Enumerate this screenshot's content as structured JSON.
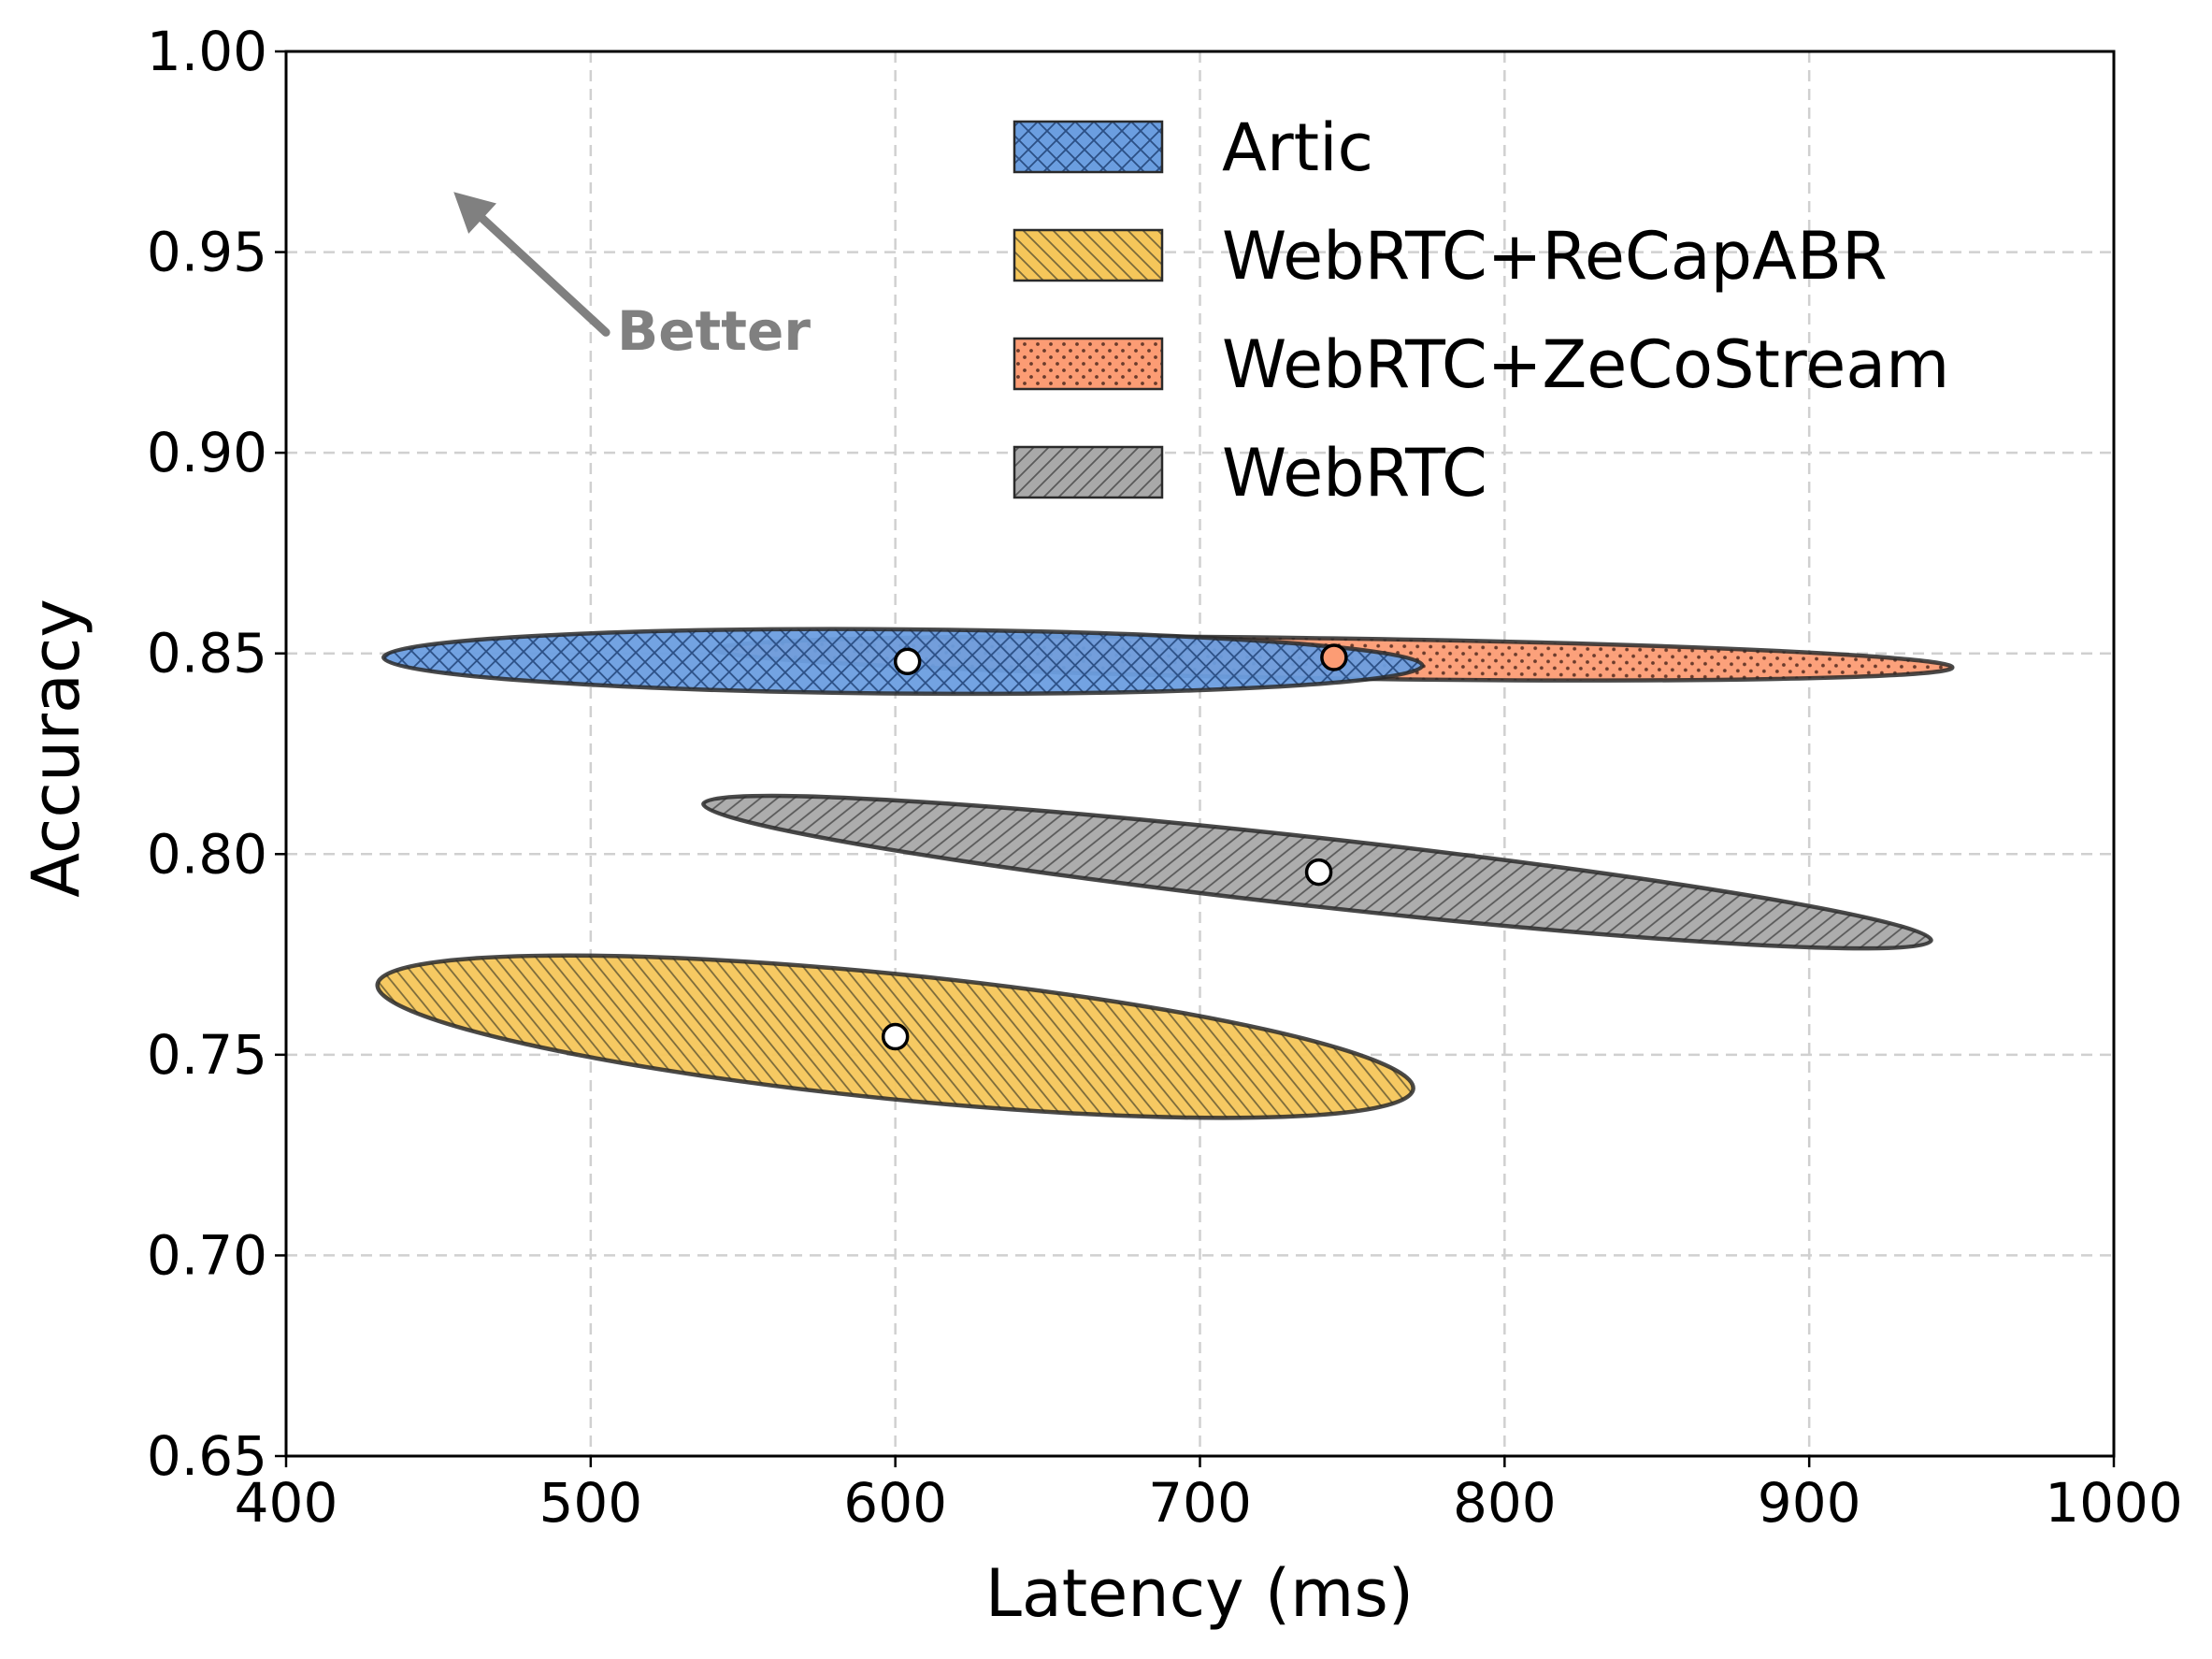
{
  "chart_data": {
    "type": "scatter",
    "subtype": "confidence-ellipses",
    "title": "",
    "xlabel": "Latency (ms)",
    "ylabel": "Accuracy",
    "xlim": [
      400,
      1000
    ],
    "ylim": [
      0.65,
      1.0
    ],
    "xticks": [
      400,
      500,
      600,
      700,
      800,
      900,
      1000
    ],
    "xtick_labels": [
      "400",
      "500",
      "600",
      "700",
      "800",
      "900",
      "1000"
    ],
    "yticks": [
      0.65,
      0.7,
      0.75,
      0.8,
      0.85,
      0.9,
      0.95,
      1.0
    ],
    "ytick_labels": [
      "0.65",
      "0.70",
      "0.75",
      "0.80",
      "0.85",
      "0.90",
      "0.95",
      "1.00"
    ],
    "grid": true,
    "legend_position": "top-right",
    "annotation": {
      "text": "Better",
      "arrow_from": [
        505,
        0.93
      ],
      "arrow_to": [
        455,
        0.965
      ],
      "color": "#808080"
    },
    "series": [
      {
        "name": "WebRTC",
        "color": "#a9a9a9",
        "hatch": "forward-diagonal",
        "ellipses": [
          {
            "endpoints": [
              [
                537,
                0.8125
              ],
              [
                940,
                0.7785
              ]
            ],
            "halfwidth": 0.0085
          }
        ],
        "mean": {
          "x": 739,
          "y": 0.7955
        }
      },
      {
        "name": "WebRTC+ReCapABR",
        "color": "#f5c65a",
        "hatch": "back-diagonal",
        "ellipses": [
          {
            "endpoints": [
              [
                430,
                0.7675
              ],
              [
                770,
                0.7415
              ]
            ],
            "halfwidth": 0.0155
          }
        ],
        "mean": {
          "x": 600,
          "y": 0.7545
        }
      },
      {
        "name": "WebRTC+ZeCoStream",
        "color": "#fc9c74",
        "hatch": "dots",
        "ellipses": [
          {
            "endpoints": [
              [
                541,
                0.851
              ],
              [
                947,
                0.8465
              ]
            ],
            "halfwidth": 0.005
          }
        ],
        "mean": {
          "x": 744,
          "y": 0.849
        }
      },
      {
        "name": "Artic",
        "color": "#6b9ee0",
        "hatch": "cross",
        "ellipses": [
          {
            "endpoints": [
              [
                432,
                0.849
              ],
              [
                773,
                0.847
              ]
            ],
            "halfwidth": 0.008
          }
        ],
        "mean": {
          "x": 604,
          "y": 0.848
        }
      }
    ],
    "legend_order": [
      "Artic",
      "WebRTC+ReCapABR",
      "WebRTC+ZeCoStream",
      "WebRTC"
    ]
  }
}
